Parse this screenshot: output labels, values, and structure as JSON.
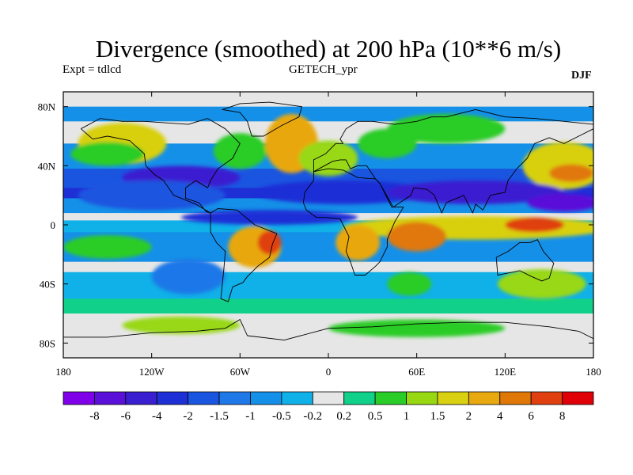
{
  "title": "Divergence (smoothed) at 200 hPa (10**6 m/s)",
  "left_subtitle": "Expt = tdlcd",
  "center_subtitle": "GETECH_ypr",
  "right_subtitle": "DJF",
  "map": {
    "lon_range": [
      -180,
      180
    ],
    "lat_range": [
      -90,
      90
    ],
    "x_ticks": [
      {
        "value": -180,
        "label": "180"
      },
      {
        "value": -120,
        "label": "120W"
      },
      {
        "value": -60,
        "label": "60W"
      },
      {
        "value": 0,
        "label": "0"
      },
      {
        "value": 60,
        "label": "60E"
      },
      {
        "value": 120,
        "label": "120E"
      },
      {
        "value": 180,
        "label": "180"
      }
    ],
    "y_ticks": [
      {
        "value": 80,
        "label": "80N"
      },
      {
        "value": 40,
        "label": "40N"
      },
      {
        "value": 0,
        "label": "0"
      },
      {
        "value": -40,
        "label": "40S"
      },
      {
        "value": -80,
        "label": "80S"
      }
    ]
  },
  "colorbar": {
    "colors": [
      "#7f00e8",
      "#5a10d8",
      "#3a1fd0",
      "#1f2fd6",
      "#1a55e0",
      "#1f78e8",
      "#1590e8",
      "#10b0e8",
      "#e6e6e6",
      "#10d08a",
      "#2acc28",
      "#98d812",
      "#d8d010",
      "#e8a810",
      "#e07808",
      "#e04010",
      "#e00008"
    ],
    "labels": [
      "-8",
      "-6",
      "-4",
      "-2",
      "-1.5",
      "-1",
      "-0.5",
      "-0.2",
      "0.2",
      "0.5",
      "1",
      "1.5",
      "2",
      "4",
      "6",
      "8"
    ]
  },
  "field_blobs": [
    {
      "lon": -140,
      "lat": 55,
      "rx": 30,
      "ry": 14,
      "level": 12
    },
    {
      "lon": -150,
      "lat": 48,
      "rx": 25,
      "ry": 8,
      "level": 10
    },
    {
      "lon": -100,
      "lat": 32,
      "rx": 40,
      "ry": 8,
      "level": 2
    },
    {
      "lon": -120,
      "lat": 20,
      "rx": 50,
      "ry": 10,
      "level": 4
    },
    {
      "lon": -60,
      "lat": 50,
      "rx": 18,
      "ry": 12,
      "level": 10
    },
    {
      "lon": -25,
      "lat": 55,
      "rx": 18,
      "ry": 20,
      "level": 13
    },
    {
      "lon": 0,
      "lat": 45,
      "rx": 20,
      "ry": 12,
      "level": 11
    },
    {
      "lon": 40,
      "lat": 55,
      "rx": 20,
      "ry": 10,
      "level": 10
    },
    {
      "lon": 80,
      "lat": 65,
      "rx": 40,
      "ry": 10,
      "level": 10
    },
    {
      "lon": 160,
      "lat": 40,
      "rx": 28,
      "ry": 16,
      "level": 12
    },
    {
      "lon": 165,
      "lat": 35,
      "rx": 15,
      "ry": 6,
      "level": 14
    },
    {
      "lon": 10,
      "lat": 22,
      "rx": 60,
      "ry": 8,
      "level": 3
    },
    {
      "lon": 100,
      "lat": 22,
      "rx": 60,
      "ry": 8,
      "level": 2
    },
    {
      "lon": 160,
      "lat": 15,
      "rx": 25,
      "ry": 6,
      "level": 1
    },
    {
      "lon": -40,
      "lat": 5,
      "rx": 60,
      "ry": 5,
      "level": 3
    },
    {
      "lon": 100,
      "lat": -2,
      "rx": 90,
      "ry": 8,
      "level": 12
    },
    {
      "lon": 60,
      "lat": -8,
      "rx": 20,
      "ry": 10,
      "level": 14
    },
    {
      "lon": 140,
      "lat": 0,
      "rx": 20,
      "ry": 5,
      "level": 15
    },
    {
      "lon": -50,
      "lat": -15,
      "rx": 18,
      "ry": 14,
      "level": 13
    },
    {
      "lon": -40,
      "lat": -12,
      "rx": 8,
      "ry": 8,
      "level": 15
    },
    {
      "lon": 20,
      "lat": -12,
      "rx": 15,
      "ry": 12,
      "level": 13
    },
    {
      "lon": -150,
      "lat": -15,
      "rx": 30,
      "ry": 8,
      "level": 10
    },
    {
      "lon": -95,
      "lat": -35,
      "rx": 25,
      "ry": 12,
      "level": 5
    },
    {
      "lon": 55,
      "lat": -40,
      "rx": 15,
      "ry": 8,
      "level": 10
    },
    {
      "lon": 145,
      "lat": -40,
      "rx": 30,
      "ry": 10,
      "level": 11
    },
    {
      "lon": -100,
      "lat": -68,
      "rx": 40,
      "ry": 6,
      "level": 11
    },
    {
      "lon": 60,
      "lat": -70,
      "rx": 60,
      "ry": 6,
      "level": 10
    }
  ],
  "continent_outlines": [
    [
      [
        -168,
        65
      ],
      [
        -155,
        72
      ],
      [
        -140,
        70
      ],
      [
        -125,
        70
      ],
      [
        -95,
        68
      ],
      [
        -82,
        72
      ],
      [
        -70,
        65
      ],
      [
        -60,
        55
      ],
      [
        -65,
        45
      ],
      [
        -75,
        38
      ],
      [
        -80,
        30
      ],
      [
        -82,
        25
      ],
      [
        -90,
        30
      ],
      [
        -97,
        25
      ],
      [
        -97,
        18
      ],
      [
        -88,
        15
      ],
      [
        -83,
        9
      ],
      [
        -80,
        8
      ],
      [
        -90,
        14
      ],
      [
        -105,
        20
      ],
      [
        -112,
        30
      ],
      [
        -118,
        34
      ],
      [
        -124,
        40
      ],
      [
        -125,
        48
      ],
      [
        -135,
        57
      ],
      [
        -150,
        60
      ],
      [
        -160,
        58
      ],
      [
        -168,
        65
      ]
    ],
    [
      [
        -80,
        8
      ],
      [
        -75,
        11
      ],
      [
        -62,
        10
      ],
      [
        -50,
        0
      ],
      [
        -35,
        -6
      ],
      [
        -38,
        -13
      ],
      [
        -40,
        -22
      ],
      [
        -48,
        -28
      ],
      [
        -55,
        -35
      ],
      [
        -58,
        -39
      ],
      [
        -65,
        -42
      ],
      [
        -68,
        -52
      ],
      [
        -73,
        -50
      ],
      [
        -72,
        -40
      ],
      [
        -71,
        -30
      ],
      [
        -70,
        -18
      ],
      [
        -76,
        -12
      ],
      [
        -80,
        -5
      ],
      [
        -80,
        0
      ],
      [
        -80,
        8
      ]
    ],
    [
      [
        -10,
        36
      ],
      [
        0,
        38
      ],
      [
        10,
        37
      ],
      [
        20,
        32
      ],
      [
        32,
        31
      ],
      [
        35,
        28
      ],
      [
        43,
        12
      ],
      [
        51,
        12
      ],
      [
        45,
        2
      ],
      [
        40,
        -10
      ],
      [
        40,
        -15
      ],
      [
        35,
        -25
      ],
      [
        32,
        -28
      ],
      [
        25,
        -34
      ],
      [
        18,
        -34
      ],
      [
        15,
        -25
      ],
      [
        12,
        -18
      ],
      [
        14,
        -8
      ],
      [
        10,
        0
      ],
      [
        8,
        4
      ],
      [
        -2,
        5
      ],
      [
        -8,
        5
      ],
      [
        -15,
        10
      ],
      [
        -17,
        15
      ],
      [
        -16,
        22
      ],
      [
        -10,
        30
      ],
      [
        -10,
        36
      ]
    ],
    [
      [
        -10,
        36
      ],
      [
        -10,
        44
      ],
      [
        -2,
        48
      ],
      [
        0,
        50
      ],
      [
        5,
        55
      ],
      [
        10,
        55
      ],
      [
        8,
        58
      ],
      [
        12,
        65
      ],
      [
        20,
        70
      ],
      [
        30,
        70
      ],
      [
        45,
        68
      ],
      [
        60,
        70
      ],
      [
        70,
        73
      ],
      [
        80,
        73
      ],
      [
        100,
        78
      ],
      [
        120,
        73
      ],
      [
        140,
        72
      ],
      [
        160,
        70
      ],
      [
        180,
        68
      ],
      [
        180,
        65
      ],
      [
        170,
        60
      ],
      [
        160,
        55
      ],
      [
        150,
        59
      ],
      [
        140,
        55
      ],
      [
        135,
        45
      ],
      [
        128,
        38
      ],
      [
        122,
        30
      ],
      [
        120,
        22
      ],
      [
        110,
        20
      ],
      [
        105,
        10
      ],
      [
        100,
        14
      ],
      [
        98,
        8
      ],
      [
        92,
        20
      ],
      [
        80,
        15
      ],
      [
        77,
        8
      ],
      [
        72,
        20
      ],
      [
        67,
        24
      ],
      [
        58,
        25
      ],
      [
        56,
        20
      ],
      [
        44,
        12
      ],
      [
        35,
        28
      ],
      [
        32,
        31
      ],
      [
        26,
        40
      ],
      [
        20,
        40
      ],
      [
        15,
        38
      ],
      [
        12,
        44
      ],
      [
        8,
        44
      ],
      [
        3,
        43
      ],
      [
        -10,
        36
      ]
    ],
    [
      [
        114,
        -22
      ],
      [
        122,
        -18
      ],
      [
        130,
        -12
      ],
      [
        137,
        -12
      ],
      [
        142,
        -10
      ],
      [
        146,
        -18
      ],
      [
        153,
        -26
      ],
      [
        150,
        -36
      ],
      [
        145,
        -38
      ],
      [
        138,
        -35
      ],
      [
        130,
        -31
      ],
      [
        115,
        -34
      ],
      [
        114,
        -22
      ]
    ],
    [
      [
        -180,
        -76
      ],
      [
        -150,
        -76
      ],
      [
        -120,
        -73
      ],
      [
        -90,
        -72
      ],
      [
        -70,
        -70
      ],
      [
        -60,
        -64
      ],
      [
        -55,
        -75
      ],
      [
        -30,
        -78
      ],
      [
        0,
        -70
      ],
      [
        30,
        -69
      ],
      [
        60,
        -67
      ],
      [
        90,
        -66
      ],
      [
        120,
        -66
      ],
      [
        150,
        -69
      ],
      [
        170,
        -72
      ],
      [
        180,
        -77
      ]
    ],
    [
      [
        -52,
        60
      ],
      [
        -44,
        60
      ],
      [
        -32,
        67
      ],
      [
        -20,
        73
      ],
      [
        -18,
        80
      ],
      [
        -40,
        83
      ],
      [
        -60,
        82
      ],
      [
        -72,
        78
      ],
      [
        -60,
        76
      ],
      [
        -55,
        70
      ],
      [
        -52,
        60
      ]
    ]
  ]
}
